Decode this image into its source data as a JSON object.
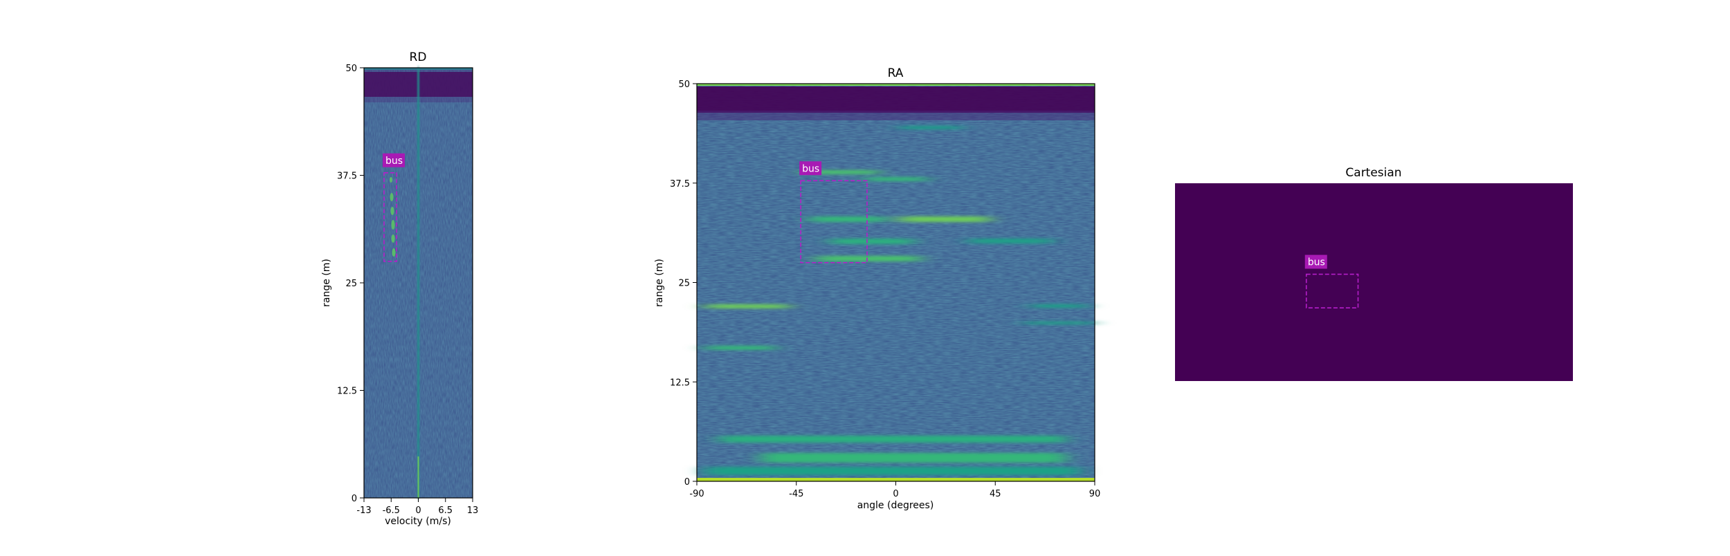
{
  "colors": {
    "heatmap_base": "#3a528b",
    "heatmap_dark": "#440154",
    "heatmap_hot": "#fde725",
    "heatmap_mid": "#21918c",
    "box": "#b51fc9",
    "label_bg": "#a81ab4",
    "label_text": "#ffffff"
  },
  "chart_data": [
    {
      "type": "heatmap",
      "title": "RD",
      "xlabel": "velocity (m/s)",
      "ylabel": "range (m)",
      "xlim": [
        -13,
        13
      ],
      "ylim": [
        0,
        50
      ],
      "xticks": [
        -13,
        -6.5,
        0,
        6.5,
        13
      ],
      "yticks": [
        0,
        12.5,
        25,
        37.5,
        50
      ],
      "xtick_labels": [
        "-13",
        "-6.5",
        "0",
        "6.5",
        "13"
      ],
      "ytick_labels": [
        "0",
        "12.5",
        "25",
        "37.5",
        "50"
      ],
      "annotations": [
        {
          "label": "bus",
          "x": [
            -8.2,
            -5.2
          ],
          "y": [
            27.5,
            37.8
          ]
        }
      ]
    },
    {
      "type": "heatmap",
      "title": "RA",
      "xlabel": "angle (degrees)",
      "ylabel": "range (m)",
      "xlim": [
        -90,
        90
      ],
      "ylim": [
        0,
        50
      ],
      "xticks": [
        -90,
        -45,
        0,
        45,
        90
      ],
      "yticks": [
        0,
        12.5,
        25,
        37.5,
        50
      ],
      "xtick_labels": [
        "-90",
        "-45",
        "0",
        "45",
        "90"
      ],
      "ytick_labels": [
        "0",
        "12.5",
        "25",
        "37.5",
        "50"
      ],
      "annotations": [
        {
          "label": "bus",
          "x": [
            -43,
            -13
          ],
          "y": [
            27.5,
            37.8
          ]
        }
      ]
    },
    {
      "type": "heatmap",
      "title": "Cartesian",
      "annotations": [
        {
          "label": "bus",
          "x": [
            0.33,
            0.46
          ],
          "y": [
            0.46,
            0.63
          ]
        }
      ]
    }
  ]
}
